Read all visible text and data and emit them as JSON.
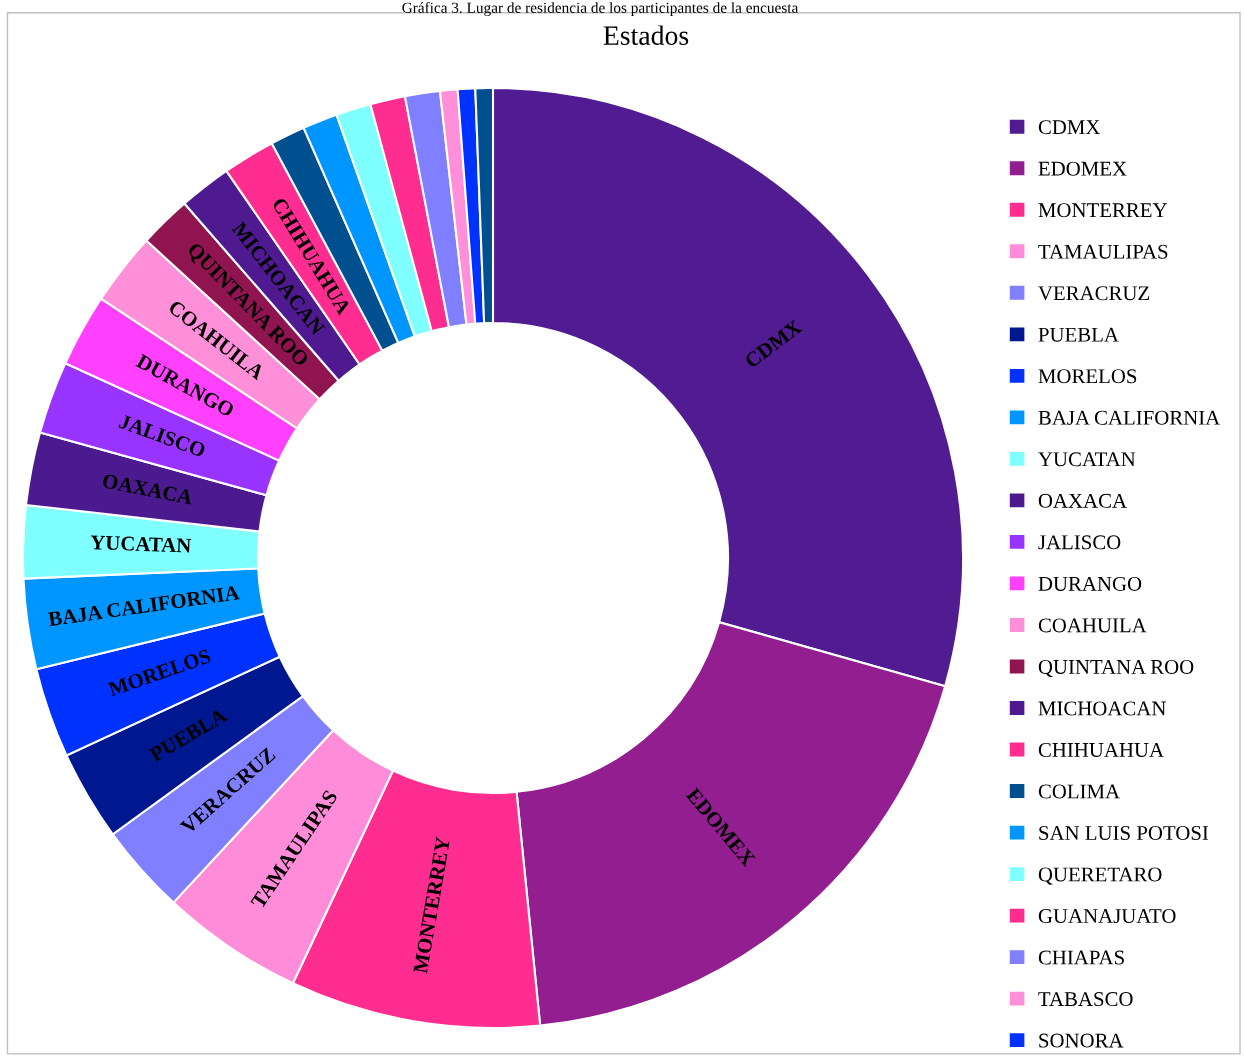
{
  "chart_data": {
    "type": "donut",
    "title": "Estados",
    "annotations": [
      "Gráfica 3. Lugar de residencia de los participantes de la encuesta"
    ],
    "legend": "right",
    "categories": [
      "CDMX",
      "EDOMEX",
      "MONTERREY",
      "TAMAULIPAS",
      "VERACRUZ",
      "PUEBLA",
      "MORELOS",
      "BAJA CALIFORNIA",
      "YUCATAN",
      "OAXACA",
      "JALISCO",
      "DURANGO",
      "COAHUILA",
      "QUINTANA ROO",
      "MICHOACAN",
      "CHIHUAHUA",
      "COLIMA",
      "SAN LUIS POTOSI",
      "QUERETARO",
      "GUANAJUATO",
      "CHIAPAS",
      "TABASCO",
      "SONORA",
      null
    ],
    "values": [
      29.4,
      19.0,
      8.6,
      4.9,
      3.1,
      3.1,
      3.1,
      3.1,
      2.5,
      2.5,
      2.5,
      2.5,
      2.5,
      1.8,
      1.8,
      1.8,
      1.2,
      1.2,
      1.2,
      1.2,
      1.2,
      0.6,
      0.6,
      0.6
    ],
    "colors": [
      "#511b91",
      "#921e90",
      "#ff2d8f",
      "#ff8cd8",
      "#7f7fff",
      "#00188f",
      "#0032ff",
      "#0096ff",
      "#7fffff",
      "#4b1a8f",
      "#9933ff",
      "#ff40ff",
      "#ff8fd8",
      "#8f1450",
      "#4f1a8f",
      "#ff2d8f",
      "#005090",
      "#0096ff",
      "#7fffff",
      "#ff2d8f",
      "#7f7fff",
      "#ff8fd8",
      "#0032ff",
      "#005090"
    ]
  }
}
